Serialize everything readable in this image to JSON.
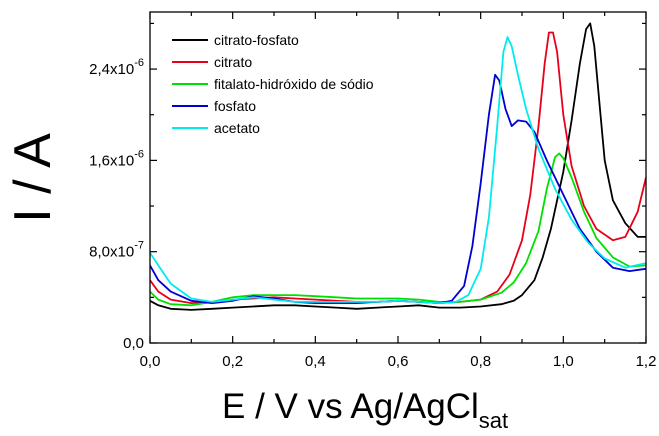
{
  "chart_data": {
    "type": "line",
    "xlabel": "E / V vs Ag/AgCl",
    "xlabel_sub": "sat",
    "ylabel": "I / A",
    "xlim": [
      0,
      1.2
    ],
    "ylim": [
      0,
      2.9e-06
    ],
    "x_ticks": [
      0.0,
      0.2,
      0.4,
      0.6,
      0.8,
      1.0,
      1.2
    ],
    "x_tick_labels": [
      "0,0",
      "0,2",
      "0,4",
      "0,6",
      "0,8",
      "1,0",
      "1,2"
    ],
    "y_ticks": [
      0,
      8e-07,
      1.6e-06,
      2.4e-06
    ],
    "y_tick_labels": [
      {
        "base": "0,0",
        "exp": ""
      },
      {
        "base": "8,0x10",
        "exp": "-7"
      },
      {
        "base": "1,6x10",
        "exp": "-6"
      },
      {
        "base": "2,4x10",
        "exp": "-6"
      }
    ],
    "grid": false,
    "legend_position": "top-left",
    "series": [
      {
        "name": "citrato-fosfato",
        "color": "#000000",
        "points": [
          [
            0.0,
            3.7e-07
          ],
          [
            0.02,
            3.3e-07
          ],
          [
            0.05,
            3e-07
          ],
          [
            0.1,
            2.9e-07
          ],
          [
            0.15,
            3e-07
          ],
          [
            0.2,
            3.1e-07
          ],
          [
            0.25,
            3.2e-07
          ],
          [
            0.3,
            3.3e-07
          ],
          [
            0.35,
            3.3e-07
          ],
          [
            0.4,
            3.2e-07
          ],
          [
            0.45,
            3.1e-07
          ],
          [
            0.5,
            3e-07
          ],
          [
            0.55,
            3.1e-07
          ],
          [
            0.6,
            3.2e-07
          ],
          [
            0.65,
            3.3e-07
          ],
          [
            0.7,
            3.1e-07
          ],
          [
            0.75,
            3.1e-07
          ],
          [
            0.8,
            3.2e-07
          ],
          [
            0.85,
            3.4e-07
          ],
          [
            0.88,
            3.7e-07
          ],
          [
            0.9,
            4.2e-07
          ],
          [
            0.93,
            5.5e-07
          ],
          [
            0.95,
            7.5e-07
          ],
          [
            0.97,
            1e-06
          ],
          [
            1.0,
            1.5e-06
          ],
          [
            1.02,
            1.95e-06
          ],
          [
            1.04,
            2.45e-06
          ],
          [
            1.055,
            2.75e-06
          ],
          [
            1.065,
            2.8e-06
          ],
          [
            1.075,
            2.6e-06
          ],
          [
            1.09,
            2e-06
          ],
          [
            1.1,
            1.6e-06
          ],
          [
            1.12,
            1.25e-06
          ],
          [
            1.15,
            1.05e-06
          ],
          [
            1.18,
            9.3e-07
          ],
          [
            1.2,
            9.3e-07
          ]
        ]
      },
      {
        "name": "citrato",
        "color": "#e8001a",
        "points": [
          [
            0.0,
            5.5e-07
          ],
          [
            0.02,
            4.5e-07
          ],
          [
            0.05,
            3.8e-07
          ],
          [
            0.1,
            3.5e-07
          ],
          [
            0.15,
            3.6e-07
          ],
          [
            0.2,
            3.8e-07
          ],
          [
            0.25,
            3.9e-07
          ],
          [
            0.3,
            4e-07
          ],
          [
            0.35,
            3.9e-07
          ],
          [
            0.4,
            3.8e-07
          ],
          [
            0.45,
            3.7e-07
          ],
          [
            0.5,
            3.6e-07
          ],
          [
            0.55,
            3.6e-07
          ],
          [
            0.6,
            3.7e-07
          ],
          [
            0.65,
            3.6e-07
          ],
          [
            0.7,
            3.5e-07
          ],
          [
            0.75,
            3.6e-07
          ],
          [
            0.8,
            3.8e-07
          ],
          [
            0.84,
            4.5e-07
          ],
          [
            0.87,
            6e-07
          ],
          [
            0.9,
            9e-07
          ],
          [
            0.92,
            1.3e-06
          ],
          [
            0.94,
            1.9e-06
          ],
          [
            0.955,
            2.45e-06
          ],
          [
            0.965,
            2.72e-06
          ],
          [
            0.975,
            2.72e-06
          ],
          [
            0.985,
            2.55e-06
          ],
          [
            1.0,
            2e-06
          ],
          [
            1.02,
            1.55e-06
          ],
          [
            1.05,
            1.2e-06
          ],
          [
            1.08,
            1e-06
          ],
          [
            1.12,
            9e-07
          ],
          [
            1.15,
            9.3e-07
          ],
          [
            1.18,
            1.15e-06
          ],
          [
            1.2,
            1.45e-06
          ]
        ]
      },
      {
        "name": "fitalato-hidróxido de sódio",
        "color": "#00e000",
        "points": [
          [
            0.0,
            4.5e-07
          ],
          [
            0.02,
            3.8e-07
          ],
          [
            0.05,
            3.4e-07
          ],
          [
            0.1,
            3.3e-07
          ],
          [
            0.15,
            3.6e-07
          ],
          [
            0.2,
            4e-07
          ],
          [
            0.25,
            4.2e-07
          ],
          [
            0.3,
            4.2e-07
          ],
          [
            0.35,
            4.2e-07
          ],
          [
            0.4,
            4.1e-07
          ],
          [
            0.45,
            4e-07
          ],
          [
            0.5,
            3.9e-07
          ],
          [
            0.55,
            3.9e-07
          ],
          [
            0.6,
            3.9e-07
          ],
          [
            0.65,
            3.8e-07
          ],
          [
            0.7,
            3.6e-07
          ],
          [
            0.75,
            3.6e-07
          ],
          [
            0.8,
            3.8e-07
          ],
          [
            0.85,
            4.4e-07
          ],
          [
            0.88,
            5.3e-07
          ],
          [
            0.91,
            7e-07
          ],
          [
            0.94,
            9.8e-07
          ],
          [
            0.96,
            1.35e-06
          ],
          [
            0.98,
            1.63e-06
          ],
          [
            0.99,
            1.66e-06
          ],
          [
            1.0,
            1.62e-06
          ],
          [
            1.02,
            1.45e-06
          ],
          [
            1.05,
            1.15e-06
          ],
          [
            1.08,
            9.2e-07
          ],
          [
            1.12,
            7.5e-07
          ],
          [
            1.16,
            6.7e-07
          ],
          [
            1.2,
            6.8e-07
          ]
        ]
      },
      {
        "name": "fosfato",
        "color": "#0000d0",
        "points": [
          [
            0.0,
            6.8e-07
          ],
          [
            0.02,
            5.5e-07
          ],
          [
            0.05,
            4.5e-07
          ],
          [
            0.1,
            3.7e-07
          ],
          [
            0.15,
            3.5e-07
          ],
          [
            0.2,
            3.7e-07
          ],
          [
            0.25,
            4.1e-07
          ],
          [
            0.3,
            3.9e-07
          ],
          [
            0.35,
            3.6e-07
          ],
          [
            0.4,
            3.5e-07
          ],
          [
            0.45,
            3.5e-07
          ],
          [
            0.5,
            3.5e-07
          ],
          [
            0.55,
            3.6e-07
          ],
          [
            0.6,
            3.7e-07
          ],
          [
            0.65,
            3.6e-07
          ],
          [
            0.7,
            3.5e-07
          ],
          [
            0.73,
            3.7e-07
          ],
          [
            0.76,
            5e-07
          ],
          [
            0.78,
            8.5e-07
          ],
          [
            0.8,
            1.4e-06
          ],
          [
            0.82,
            2e-06
          ],
          [
            0.835,
            2.35e-06
          ],
          [
            0.845,
            2.3e-06
          ],
          [
            0.86,
            2.05e-06
          ],
          [
            0.875,
            1.9e-06
          ],
          [
            0.89,
            1.95e-06
          ],
          [
            0.91,
            1.94e-06
          ],
          [
            0.93,
            1.85e-06
          ],
          [
            0.96,
            1.6e-06
          ],
          [
            1.0,
            1.3e-06
          ],
          [
            1.04,
            1e-06
          ],
          [
            1.08,
            8e-07
          ],
          [
            1.12,
            6.6e-07
          ],
          [
            1.16,
            6.3e-07
          ],
          [
            1.2,
            6.5e-07
          ]
        ]
      },
      {
        "name": "acetato",
        "color": "#00ecec",
        "points": [
          [
            0.0,
            7.9e-07
          ],
          [
            0.02,
            6.8e-07
          ],
          [
            0.05,
            5.2e-07
          ],
          [
            0.1,
            3.9e-07
          ],
          [
            0.15,
            3.6e-07
          ],
          [
            0.2,
            3.8e-07
          ],
          [
            0.25,
            4e-07
          ],
          [
            0.3,
            3.8e-07
          ],
          [
            0.35,
            3.6e-07
          ],
          [
            0.4,
            3.6e-07
          ],
          [
            0.45,
            3.6e-07
          ],
          [
            0.5,
            3.6e-07
          ],
          [
            0.55,
            3.6e-07
          ],
          [
            0.6,
            3.7e-07
          ],
          [
            0.65,
            3.6e-07
          ],
          [
            0.7,
            3.5e-07
          ],
          [
            0.74,
            3.6e-07
          ],
          [
            0.77,
            4.2e-07
          ],
          [
            0.8,
            6.5e-07
          ],
          [
            0.82,
            1.1e-06
          ],
          [
            0.84,
            1.9e-06
          ],
          [
            0.855,
            2.55e-06
          ],
          [
            0.865,
            2.68e-06
          ],
          [
            0.875,
            2.6e-06
          ],
          [
            0.89,
            2.35e-06
          ],
          [
            0.91,
            2.05e-06
          ],
          [
            0.94,
            1.7e-06
          ],
          [
            0.98,
            1.35e-06
          ],
          [
            1.02,
            1.08e-06
          ],
          [
            1.06,
            8.8e-07
          ],
          [
            1.1,
            7.4e-07
          ],
          [
            1.15,
            6.6e-07
          ],
          [
            1.2,
            7e-07
          ]
        ]
      }
    ]
  }
}
